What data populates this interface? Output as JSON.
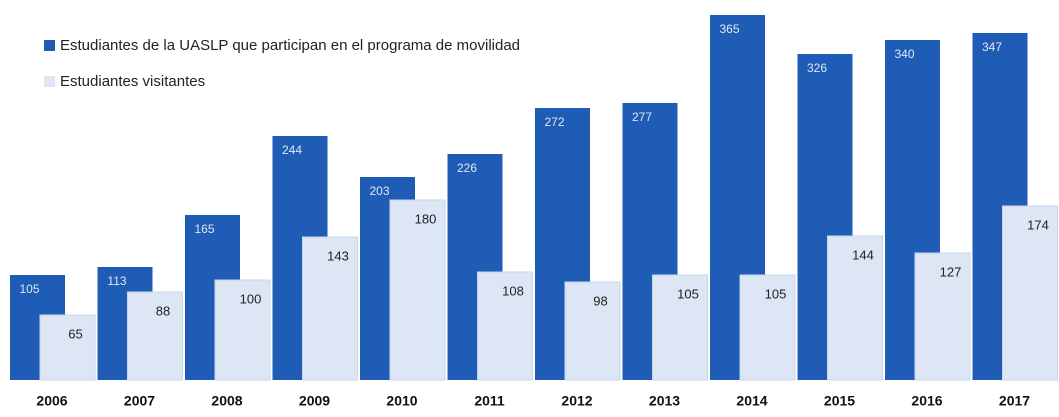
{
  "chart_data": {
    "type": "bar",
    "categories": [
      "2006",
      "2007",
      "2008",
      "2009",
      "2010",
      "2011",
      "2012",
      "2013",
      "2014",
      "2015",
      "2016",
      "2017"
    ],
    "series": [
      {
        "name": "Estudiantes de la UASLP que participan en el programa de movilidad",
        "color": "#1f5cb5",
        "values": [
          105,
          113,
          165,
          244,
          203,
          226,
          272,
          277,
          365,
          326,
          340,
          347
        ]
      },
      {
        "name": "Estudiantes visitantes",
        "color": "#dce6f4",
        "values": [
          65,
          88,
          100,
          143,
          180,
          108,
          98,
          105,
          105,
          144,
          127,
          174
        ]
      }
    ],
    "legend": "top-left"
  }
}
